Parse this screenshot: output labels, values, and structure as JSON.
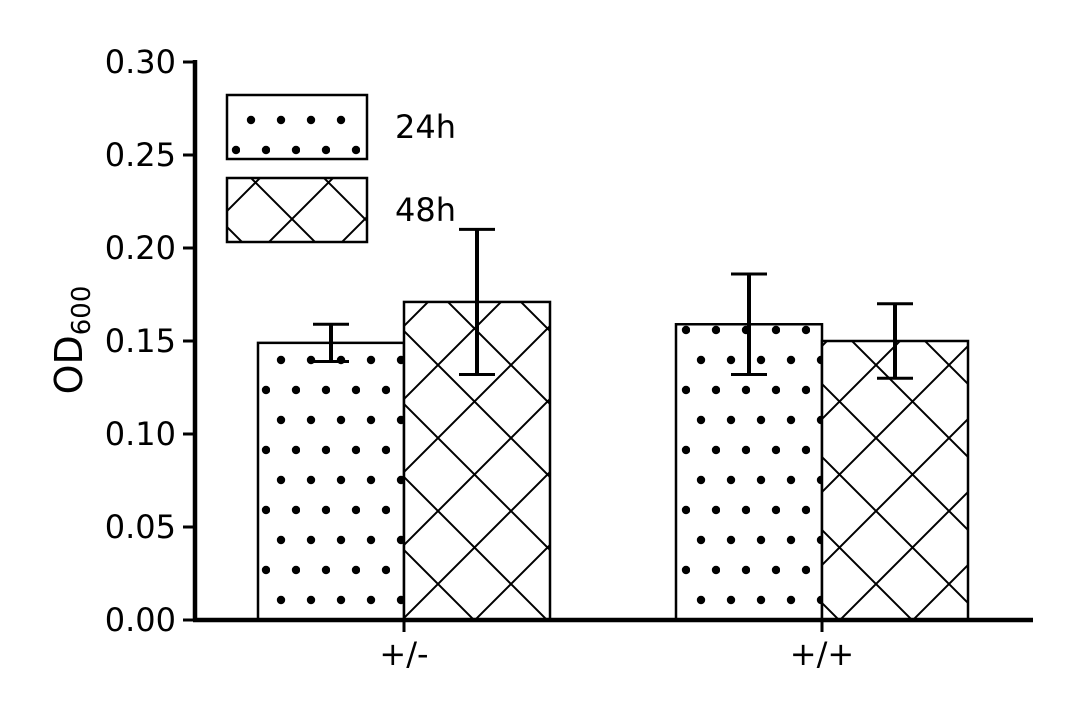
{
  "chart_data": {
    "type": "bar",
    "categories": [
      "+/-",
      "+/+"
    ],
    "series": [
      {
        "name": "24h",
        "pattern": "dots",
        "values": [
          0.149,
          0.159
        ],
        "errors": [
          0.01,
          0.027
        ]
      },
      {
        "name": "48h",
        "pattern": "crosshatch",
        "values": [
          0.171,
          0.15
        ],
        "errors": [
          0.039,
          0.02
        ]
      }
    ],
    "title": "",
    "xlabel": "",
    "ylabel": {
      "base": "OD",
      "subscript": "600"
    },
    "ylim": [
      0,
      0.3
    ],
    "yticks": [
      "0.00",
      "0.05",
      "0.10",
      "0.15",
      "0.20",
      "0.25",
      "0.30"
    ],
    "grid": false,
    "legend": "top-left",
    "colors": {
      "bar_fill": "#ffffff",
      "stroke": "#000000"
    }
  }
}
